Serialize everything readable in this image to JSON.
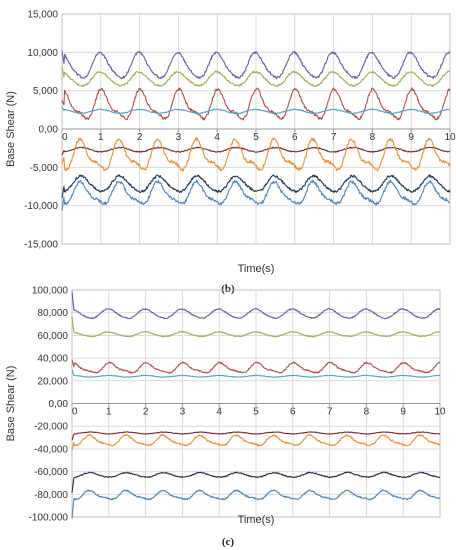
{
  "chart_data": [
    {
      "type": "line",
      "panel": "(b)",
      "xlabel": "Time(s)",
      "ylabel": "Base Shear  (N)",
      "xlim": [
        0,
        10
      ],
      "ylim": [
        -15000,
        15000
      ],
      "x_ticks": [
        "0",
        "1",
        "2",
        "3",
        "4",
        "5",
        "6",
        "7",
        "8",
        "9",
        "10"
      ],
      "y_ticks": [
        "15,000",
        "10,000",
        "5,000",
        "0,00",
        "-5,000",
        "-10,000",
        "-15,000"
      ],
      "y_tick_values": [
        15000,
        10000,
        5000,
        0,
        -5000,
        -10000,
        -15000
      ],
      "grid": true,
      "period_s": 1.0,
      "series": [
        {
          "color": "#6B5BA8",
          "mean": 8200,
          "amplitude": 1600,
          "phase": 0.0,
          "harmonic": 0.15,
          "noise": 150
        },
        {
          "color": "#9BB04E",
          "mean": 6500,
          "amplitude": 900,
          "phase": 0.0,
          "harmonic": 0.1,
          "noise": 120
        },
        {
          "color": "#B84A48",
          "mean": 3000,
          "amplitude": 1700,
          "phase": 0.05,
          "harmonic": 0.35,
          "noise": 180
        },
        {
          "color": "#4BA5C5",
          "mean": 2300,
          "amplitude": 250,
          "phase": 0.0,
          "harmonic": 0.0,
          "noise": 60
        },
        {
          "color": "#7A2A2A",
          "mean": -2700,
          "amplitude": 280,
          "phase": 0.5,
          "harmonic": 0.0,
          "noise": 70
        },
        {
          "color": "#F08C2E",
          "mean": -3600,
          "amplitude": 1700,
          "phase": 0.5,
          "harmonic": 0.4,
          "noise": 200
        },
        {
          "color": "#1F3254",
          "mean": -7200,
          "amplitude": 1000,
          "phase": 0.5,
          "harmonic": 0.1,
          "noise": 150
        },
        {
          "color": "#4A86C0",
          "mean": -8500,
          "amplitude": 1300,
          "phase": 0.5,
          "harmonic": 0.3,
          "noise": 200
        }
      ]
    },
    {
      "type": "line",
      "panel": "(c)",
      "xlabel": "Time(s)",
      "ylabel": "Base Shear  (N)",
      "xlim": [
        0,
        10
      ],
      "ylim": [
        -100000,
        100000
      ],
      "x_ticks": [
        "0",
        "1",
        "2",
        "3",
        "4",
        "5",
        "6",
        "7",
        "8",
        "9",
        "10"
      ],
      "y_ticks": [
        "100,000",
        "80,000",
        "60,000",
        "40,000",
        "20,000",
        "0,00",
        "-20,000",
        "-40,000",
        "-60,000",
        "-80,000",
        "-100,000"
      ],
      "y_tick_values": [
        100000,
        80000,
        60000,
        40000,
        20000,
        0,
        -20000,
        -40000,
        -60000,
        -80000,
        -100000
      ],
      "grid": true,
      "period_s": 1.0,
      "series": [
        {
          "color": "#6B5BA8",
          "mean": 79000,
          "amplitude": 4000,
          "phase": 0.0,
          "harmonic": 0.1,
          "noise": 500
        },
        {
          "color": "#9BB04E",
          "mean": 61000,
          "amplitude": 2000,
          "phase": 0.0,
          "harmonic": 0.1,
          "noise": 400
        },
        {
          "color": "#B84A48",
          "mean": 31000,
          "amplitude": 4000,
          "phase": 0.05,
          "harmonic": 0.3,
          "noise": 600
        },
        {
          "color": "#4BA5C5",
          "mean": 24000,
          "amplitude": 700,
          "phase": 0.0,
          "harmonic": 0.0,
          "noise": 200
        },
        {
          "color": "#7A2A2A",
          "mean": -26000,
          "amplitude": 800,
          "phase": 0.5,
          "harmonic": 0.0,
          "noise": 250
        },
        {
          "color": "#F08C2E",
          "mean": -33000,
          "amplitude": 4000,
          "phase": 0.5,
          "harmonic": 0.3,
          "noise": 700
        },
        {
          "color": "#1F3254",
          "mean": -63000,
          "amplitude": 2000,
          "phase": 0.5,
          "harmonic": 0.1,
          "noise": 500
        },
        {
          "color": "#4A86C0",
          "mean": -81000,
          "amplitude": 3500,
          "phase": 0.5,
          "harmonic": 0.3,
          "noise": 600
        }
      ]
    }
  ]
}
